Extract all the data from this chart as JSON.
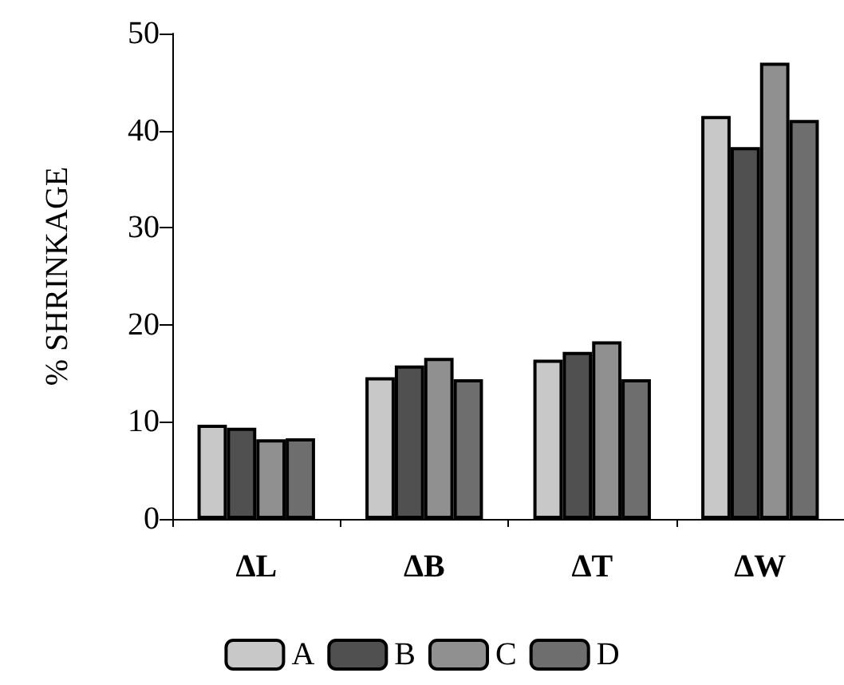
{
  "chart_data": {
    "type": "bar",
    "ylabel": "% SHRINKAGE",
    "categories": [
      "ΔL",
      "ΔB",
      "ΔT",
      "ΔW"
    ],
    "series": [
      {
        "name": "A",
        "color": "#c8c8c8",
        "values": [
          9.7,
          14.6,
          16.4,
          41.5
        ]
      },
      {
        "name": "B",
        "color": "#505050",
        "values": [
          9.4,
          15.8,
          17.2,
          38.3
        ]
      },
      {
        "name": "C",
        "color": "#909090",
        "values": [
          8.2,
          16.6,
          18.3,
          47.0
        ]
      },
      {
        "name": "D",
        "color": "#6e6e6e",
        "values": [
          8.3,
          14.4,
          14.4,
          41.1
        ]
      }
    ],
    "ylim": [
      0,
      50
    ],
    "yticks": [
      0,
      10,
      20,
      30,
      40,
      50
    ],
    "grid": false,
    "legend": "bottom"
  }
}
